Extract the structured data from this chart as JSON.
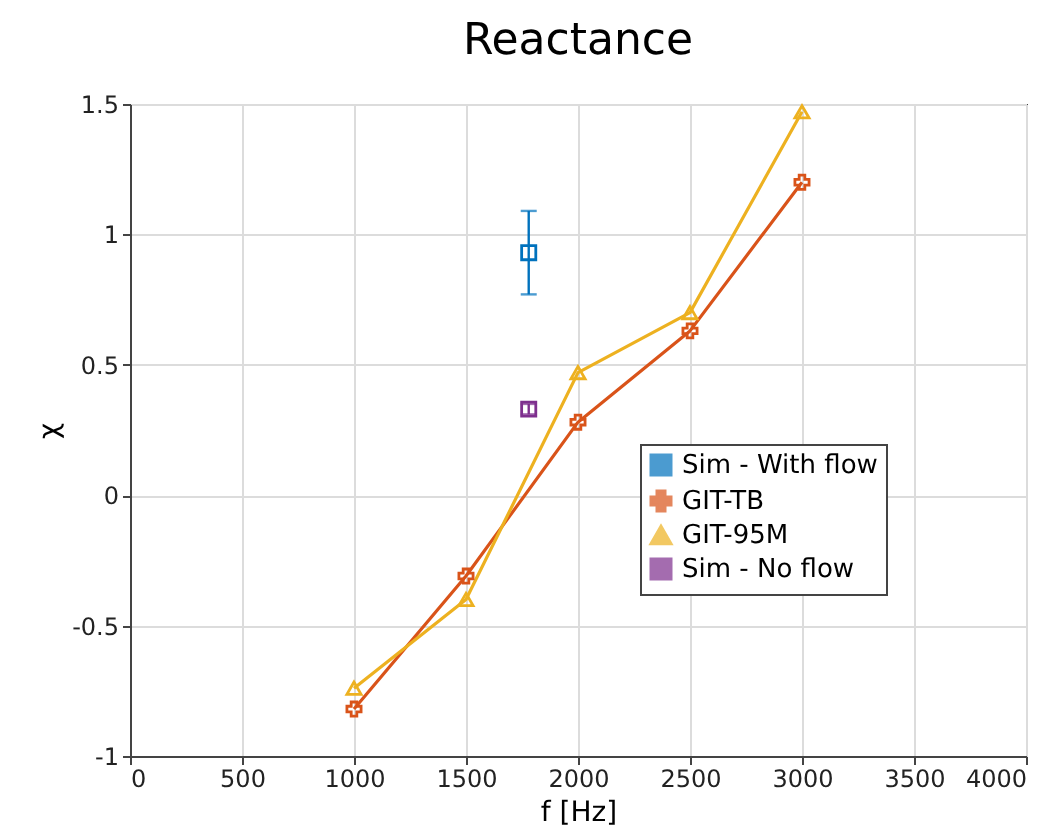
{
  "chart_data": {
    "type": "line",
    "title": "Reactance",
    "xlabel": "f [Hz]",
    "ylabel": "χ",
    "xlim": [
      0,
      4000
    ],
    "xticks": [
      0,
      500,
      1000,
      1500,
      2000,
      2500,
      3000,
      3500,
      4000
    ],
    "ylim": [
      -1,
      1.5
    ],
    "yticks": [
      -1,
      -0.5,
      0,
      0.5,
      1,
      1.5
    ],
    "grid": true,
    "legend": "right",
    "series": [
      {
        "name": "Sim - With flow",
        "type": "scatter",
        "marker": "square",
        "color": "#0072bd",
        "x": [
          1780
        ],
        "values": [
          0.93
        ],
        "errors": [
          0.16
        ]
      },
      {
        "name": "GIT-TB",
        "marker": "cross",
        "color": "#d95319",
        "x": [
          1000,
          1500,
          2000,
          2500,
          3000
        ],
        "values": [
          -0.82,
          -0.31,
          0.28,
          0.63,
          1.2
        ]
      },
      {
        "name": "GIT-95M",
        "marker": "triangle",
        "color": "#edb120",
        "x": [
          1000,
          1500,
          2000,
          2500,
          3000
        ],
        "values": [
          -0.74,
          -0.4,
          0.47,
          0.7,
          1.47
        ]
      },
      {
        "name": "Sim - No flow",
        "type": "scatter",
        "marker": "square",
        "color": "#7e2f8e",
        "x": [
          1780
        ],
        "values": [
          0.33
        ],
        "errors": [
          0.02
        ]
      }
    ]
  }
}
